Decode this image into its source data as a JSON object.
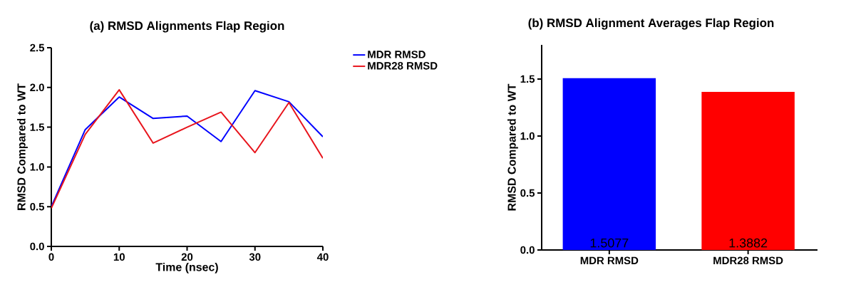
{
  "chart_data": [
    {
      "type": "line",
      "title": "(a) RMSD Alignments Flap Region",
      "xlabel": "Time (nsec)",
      "ylabel": "RMSD Compared to WT",
      "x": [
        0,
        5,
        10,
        15,
        20,
        25,
        30,
        35,
        40
      ],
      "series": [
        {
          "name": "MDR RMSD",
          "color": "#0000ff",
          "values": [
            0.5,
            1.47,
            1.88,
            1.61,
            1.64,
            1.32,
            1.96,
            1.82,
            1.38
          ]
        },
        {
          "name": "MDR28 RMSD",
          "color": "#e8141c",
          "values": [
            0.48,
            1.41,
            1.97,
            1.3,
            1.5,
            1.69,
            1.18,
            1.81,
            1.11
          ]
        }
      ],
      "xlim": [
        0,
        40
      ],
      "xticks": [
        0,
        10,
        20,
        30,
        40
      ],
      "ylim": [
        0,
        2.5
      ],
      "yticks": [
        {
          "value": 0,
          "label": "0.0"
        },
        {
          "value": 0.5,
          "label": "0.5"
        },
        {
          "value": 1,
          "label": "1.0"
        },
        {
          "value": 1.5,
          "label": "1.5"
        },
        {
          "value": 2,
          "label": "2.0"
        },
        {
          "value": 2.5,
          "label": "2.5"
        }
      ],
      "legend": "right",
      "grid": false,
      "marker": "none",
      "line_style": "solid"
    },
    {
      "type": "bar",
      "title": "(b) RMSD Alignment Averages Flap Region",
      "ylabel": "RMSD Compared to WT",
      "categories": [
        "MDR RMSD",
        "MDR28 RMSD"
      ],
      "values": [
        1.5077,
        1.3882
      ],
      "colors": [
        "#0000ff",
        "#ff0000"
      ],
      "ylim": [
        0,
        1.8
      ],
      "yticks": [
        {
          "value": 0,
          "label": "0.0"
        },
        {
          "value": 0.5,
          "label": "0.5"
        },
        {
          "value": 1,
          "label": "1.0"
        },
        {
          "value": 1.5,
          "label": "1.5"
        }
      ],
      "data_labels": true,
      "grid": false
    }
  ]
}
